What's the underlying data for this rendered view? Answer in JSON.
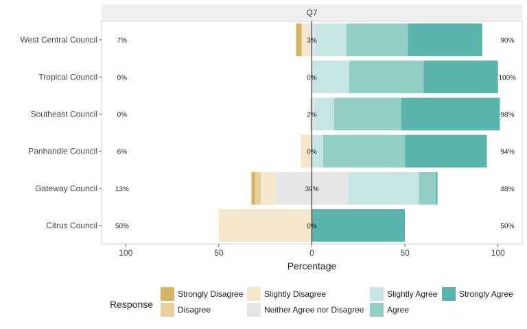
{
  "chart_data": {
    "type": "bar",
    "orientation": "horizontal",
    "stacking": "diverging",
    "facet_title": "Q7",
    "xlabel": "Percentage",
    "xlim": [
      -113,
      113
    ],
    "x_ticks": [
      {
        "value": -100,
        "label": "100"
      },
      {
        "value": -50,
        "label": "50"
      },
      {
        "value": 0,
        "label": "0"
      },
      {
        "value": 50,
        "label": "50"
      },
      {
        "value": 100,
        "label": "100"
      }
    ],
    "categories": [
      "West Central Council",
      "Tropical Council",
      "Southeast Council",
      "Panhandle Council",
      "Gateway Council",
      "Citrus Council"
    ],
    "series": [
      {
        "name": "Strongly Disagree",
        "color": "#d8b365",
        "side": "negative",
        "values": [
          3,
          0,
          0,
          0,
          2,
          0
        ]
      },
      {
        "name": "Disagree",
        "color": "#e8cf9f",
        "side": "negative",
        "values": [
          0,
          0,
          0,
          0,
          3,
          0
        ]
      },
      {
        "name": "Slightly Disagree",
        "color": "#f5e6cc",
        "side": "negative",
        "values": [
          4,
          0,
          0,
          6,
          8,
          50
        ]
      },
      {
        "name": "Neither Agree nor Disagree",
        "color": "#e5e5e5",
        "side": "center",
        "values": [
          3,
          0,
          2,
          0,
          39,
          0
        ]
      },
      {
        "name": "Slightly  Agree",
        "color": "#c7e6e3",
        "side": "positive",
        "values": [
          17,
          20,
          11,
          6,
          38,
          0
        ]
      },
      {
        "name": "Agree",
        "color": "#93cec5",
        "side": "positive",
        "values": [
          33,
          40,
          36,
          44,
          9,
          0
        ]
      },
      {
        "name": "Strongly Agree",
        "color": "#5ab4ac",
        "side": "positive",
        "values": [
          40,
          40,
          53,
          44,
          1,
          50
        ]
      }
    ],
    "label_left": [
      "7%",
      "0%",
      "0%",
      "6%",
      "13%",
      "50%"
    ],
    "label_center": [
      "3%",
      "0%",
      "2%",
      "0%",
      "39%",
      "0%"
    ],
    "label_right": [
      "90%",
      "100%",
      "98%",
      "94%",
      "48%",
      "50%"
    ],
    "legend_title": "Response",
    "legend_position": "bottom",
    "panel_background": "#ffffff",
    "strip_background": "#efefef"
  }
}
